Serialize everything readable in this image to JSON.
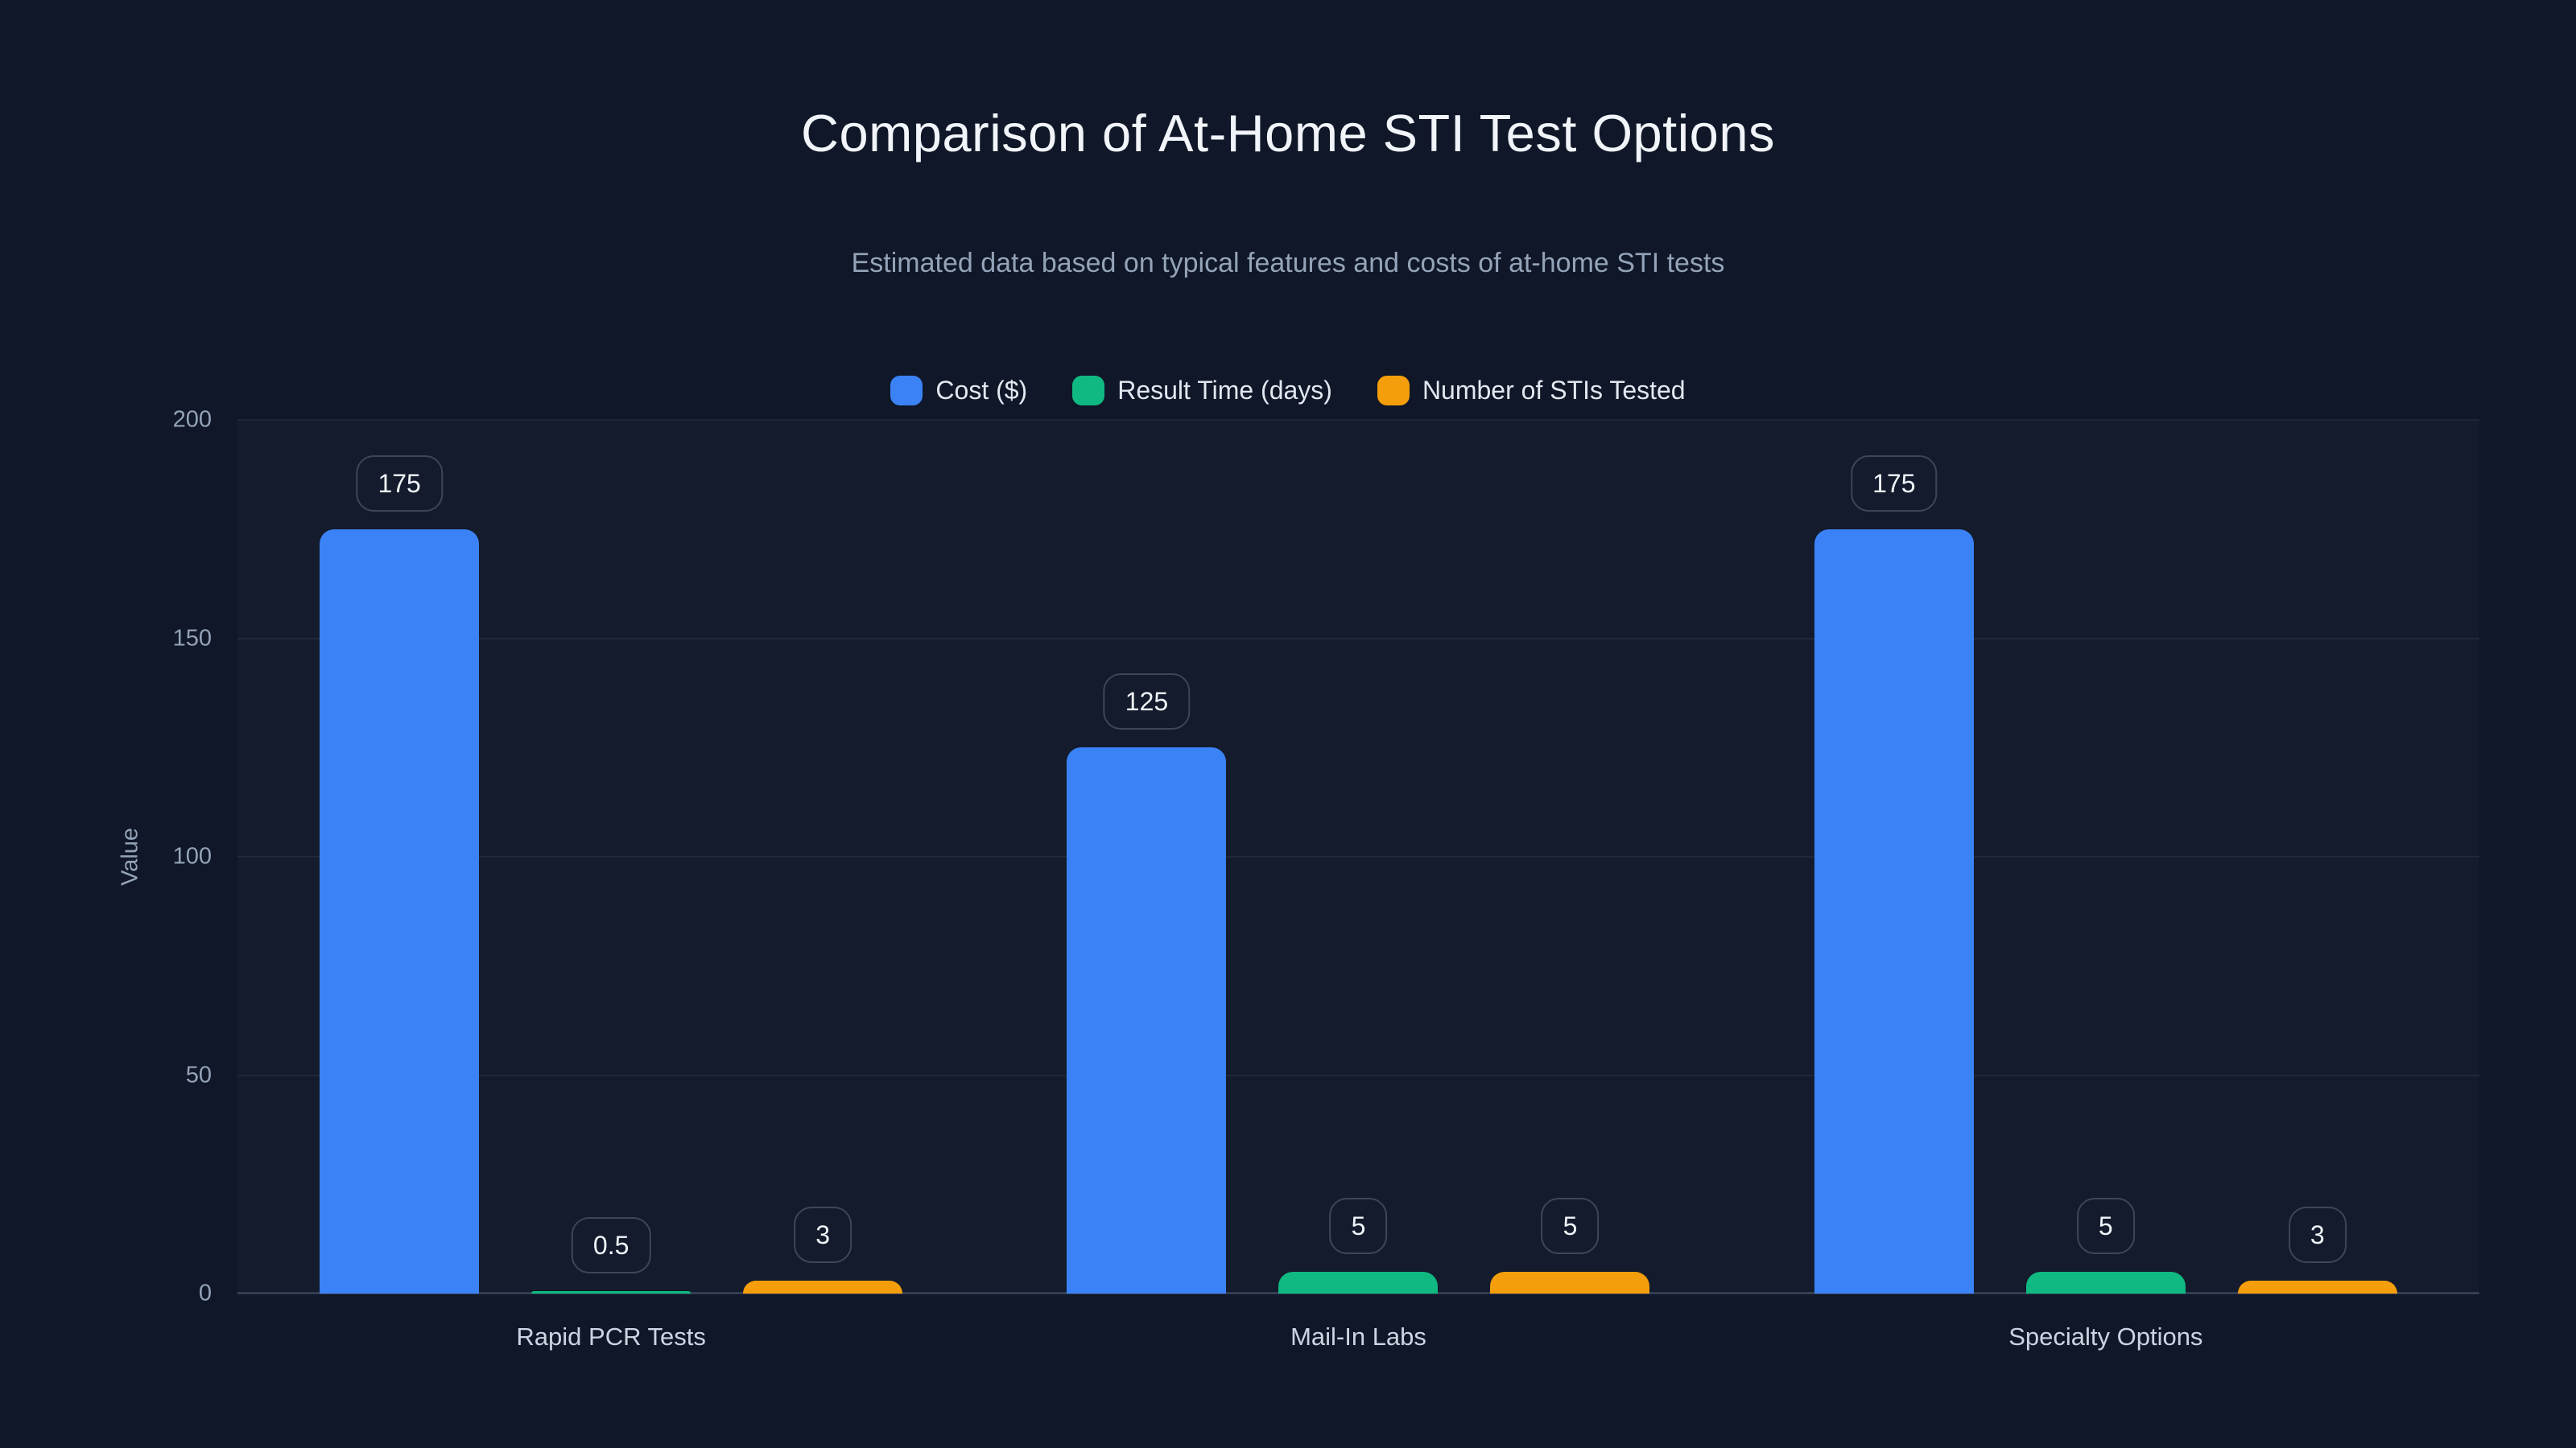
{
  "colors": {
    "background": "#0f1728",
    "title_text": "#f1f5f9",
    "subtitle_text": "#94a3b8",
    "legend_text": "#e2e8f0",
    "tick_text": "#94a3b8",
    "category_text": "#cbd5e1",
    "grid_line": "rgba(148,163,184,0.10)",
    "axis_line": "#323e52",
    "label_bubble_border": "#3b4759"
  },
  "chart_data": {
    "type": "bar",
    "title": "Comparison of At-Home STI Test Options",
    "subtitle": "Estimated data based on typical features and costs of at-home STI tests",
    "categories": [
      "Rapid PCR Tests",
      "Mail-In Labs",
      "Specialty Options"
    ],
    "series": [
      {
        "name": "Cost ($)",
        "color": "#3b82f6",
        "values": [
          175,
          125,
          175
        ]
      },
      {
        "name": "Result Time (days)",
        "color": "#10b981",
        "values": [
          0.5,
          5,
          5
        ]
      },
      {
        "name": "Number of STIs Tested",
        "color": "#f59e0b",
        "values": [
          3,
          5,
          3
        ]
      }
    ],
    "xlabel": "",
    "ylabel": "Value",
    "ylim": [
      0,
      200
    ],
    "yticks": [
      0,
      50,
      100,
      150,
      200
    ],
    "grid": "horizontal",
    "legend_position": "top",
    "data_labels": true
  }
}
